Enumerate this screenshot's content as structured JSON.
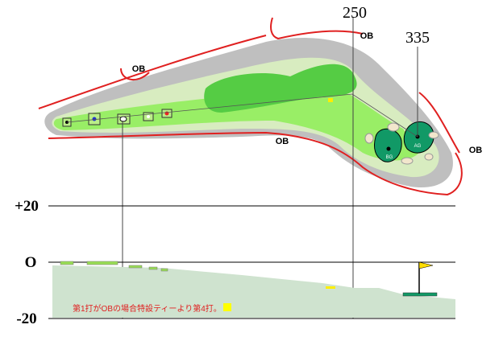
{
  "distances": [
    "250",
    "335"
  ],
  "ob_labels": [
    "OB",
    "OB",
    "OB",
    "OB"
  ],
  "elevation_labels": [
    "+20",
    "O",
    "-20"
  ],
  "green_labels": [
    "AG",
    "BG"
  ],
  "note": "第1打がOBの場合特設ティーより第4打。"
}
